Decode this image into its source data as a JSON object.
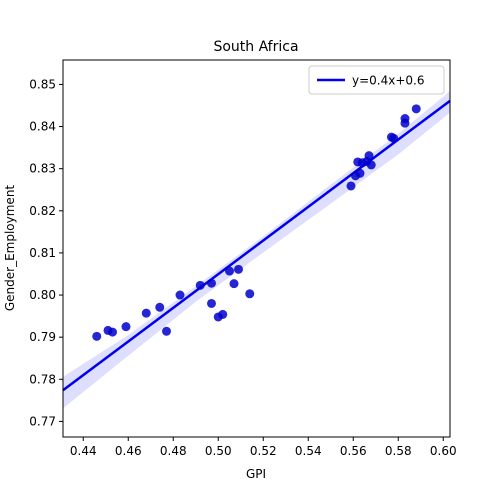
{
  "chart_data": {
    "type": "scatter",
    "title": "South Africa",
    "xlabel": "GPI",
    "ylabel": "Gender_Employment",
    "xlim": [
      0.431,
      0.603
    ],
    "ylim": [
      0.7663,
      0.8558
    ],
    "xticks": [
      0.44,
      0.46,
      0.48,
      0.5,
      0.52,
      0.54,
      0.56,
      0.58,
      0.6
    ],
    "xtick_labels": [
      "0.44",
      "0.46",
      "0.48",
      "0.50",
      "0.52",
      "0.54",
      "0.56",
      "0.58",
      "0.60"
    ],
    "yticks": [
      0.77,
      0.78,
      0.79,
      0.8,
      0.81,
      0.82,
      0.83,
      0.84,
      0.85
    ],
    "ytick_labels": [
      "0.77",
      "0.78",
      "0.79",
      "0.80",
      "0.81",
      "0.82",
      "0.83",
      "0.84",
      "0.85"
    ],
    "grid": false,
    "legend": {
      "position": "upper right",
      "entries": [
        "y=0.4x+0.6"
      ]
    },
    "points": [
      {
        "x": 0.446,
        "y": 0.7902
      },
      {
        "x": 0.451,
        "y": 0.7916
      },
      {
        "x": 0.453,
        "y": 0.7912
      },
      {
        "x": 0.459,
        "y": 0.7925
      },
      {
        "x": 0.468,
        "y": 0.7957
      },
      {
        "x": 0.474,
        "y": 0.7971
      },
      {
        "x": 0.477,
        "y": 0.7914
      },
      {
        "x": 0.483,
        "y": 0.8
      },
      {
        "x": 0.492,
        "y": 0.8023
      },
      {
        "x": 0.497,
        "y": 0.8028
      },
      {
        "x": 0.497,
        "y": 0.798
      },
      {
        "x": 0.5,
        "y": 0.7948
      },
      {
        "x": 0.502,
        "y": 0.7954
      },
      {
        "x": 0.505,
        "y": 0.8057
      },
      {
        "x": 0.507,
        "y": 0.8027
      },
      {
        "x": 0.509,
        "y": 0.8061
      },
      {
        "x": 0.514,
        "y": 0.8003
      },
      {
        "x": 0.559,
        "y": 0.8259
      },
      {
        "x": 0.561,
        "y": 0.8283
      },
      {
        "x": 0.562,
        "y": 0.8316
      },
      {
        "x": 0.563,
        "y": 0.8289
      },
      {
        "x": 0.564,
        "y": 0.8314
      },
      {
        "x": 0.566,
        "y": 0.8317
      },
      {
        "x": 0.567,
        "y": 0.8331
      },
      {
        "x": 0.568,
        "y": 0.8309
      },
      {
        "x": 0.577,
        "y": 0.8375
      },
      {
        "x": 0.578,
        "y": 0.8372
      },
      {
        "x": 0.583,
        "y": 0.8408
      },
      {
        "x": 0.583,
        "y": 0.8419
      },
      {
        "x": 0.588,
        "y": 0.8442
      }
    ],
    "regression": {
      "label": "y=0.4x+0.6",
      "x_range": [
        0.431,
        0.603
      ],
      "line": [
        [
          0.431,
          0.7774
        ],
        [
          0.603,
          0.8461
        ]
      ],
      "ci_upper": [
        [
          0.431,
          0.7806
        ],
        [
          0.46,
          0.7905
        ],
        [
          0.49,
          0.8021
        ],
        [
          0.52,
          0.8139
        ],
        [
          0.55,
          0.8262
        ],
        [
          0.58,
          0.8383
        ],
        [
          0.603,
          0.8484
        ]
      ],
      "ci_lower": [
        [
          0.431,
          0.7731
        ],
        [
          0.46,
          0.7856
        ],
        [
          0.49,
          0.7984
        ],
        [
          0.52,
          0.8101
        ],
        [
          0.55,
          0.8217
        ],
        [
          0.58,
          0.8334
        ],
        [
          0.603,
          0.8433
        ]
      ]
    },
    "colors": {
      "point": "#0000cc",
      "line": "#0000ee",
      "band": "#d8d8ff"
    }
  }
}
